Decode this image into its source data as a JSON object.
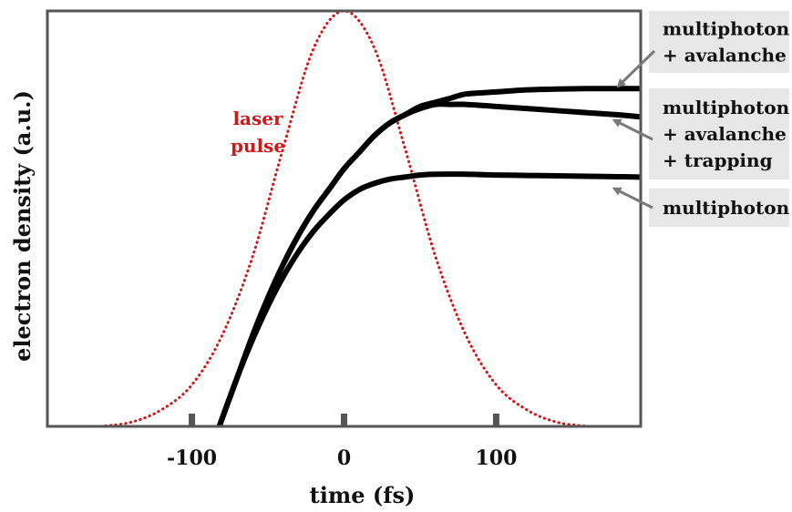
{
  "colors": {
    "curve": "#000000",
    "laser_pulse": "#d01818",
    "frame": "#555555",
    "legend_background": "#e7e7e7",
    "arrow": "#7a7a7a"
  },
  "chart_data": {
    "type": "line",
    "title": "",
    "xlabel": "time (fs)",
    "ylabel": "electron density (a.u.)",
    "xlim": [
      -195,
      195
    ],
    "ylim": [
      0,
      1
    ],
    "x_ticks": [
      -100,
      0,
      100
    ],
    "x_tick_labels": [
      "-100",
      "0",
      "100"
    ],
    "grid": false,
    "y_tick_labels": false,
    "series": [
      {
        "key": "laser",
        "label_lines": [
          "laser",
          "pulse"
        ],
        "color": "#d01818",
        "style": "dotted",
        "x": [
          -160,
          -140,
          -120,
          -100,
          -80,
          -60,
          -40,
          -20,
          0,
          20,
          40,
          60,
          80,
          100,
          120,
          140,
          160
        ],
        "y": [
          0.0,
          0.01,
          0.04,
          0.1,
          0.22,
          0.41,
          0.67,
          0.91,
          1.0,
          0.91,
          0.67,
          0.41,
          0.22,
          0.1,
          0.04,
          0.01,
          0.0
        ]
      },
      {
        "key": "multiphoton_avalanche",
        "label_lines": [
          "multiphoton",
          "+ avalanche"
        ],
        "color": "#000000",
        "style": "solid",
        "x": [
          -82,
          -70,
          -60,
          -50,
          -40,
          -30,
          -20,
          -10,
          0,
          10,
          20,
          30,
          40,
          50,
          60,
          70,
          80,
          100,
          120,
          140,
          160,
          180,
          195
        ],
        "y": [
          0.0,
          0.12,
          0.22,
          0.31,
          0.39,
          0.46,
          0.52,
          0.57,
          0.62,
          0.66,
          0.7,
          0.73,
          0.75,
          0.77,
          0.78,
          0.79,
          0.8,
          0.805,
          0.81,
          0.812,
          0.813,
          0.813,
          0.813
        ]
      },
      {
        "key": "multiphoton_avalanche_trapping",
        "label_lines": [
          "multiphoton",
          "+ avalanche",
          "+ trapping"
        ],
        "color": "#000000",
        "style": "solid",
        "x": [
          -82,
          -70,
          -60,
          -50,
          -40,
          -30,
          -20,
          -10,
          0,
          10,
          20,
          30,
          40,
          50,
          60,
          70,
          80,
          100,
          120,
          140,
          160,
          180,
          195
        ],
        "y": [
          0.0,
          0.12,
          0.22,
          0.31,
          0.39,
          0.46,
          0.52,
          0.57,
          0.62,
          0.66,
          0.7,
          0.73,
          0.75,
          0.765,
          0.775,
          0.775,
          0.775,
          0.77,
          0.765,
          0.76,
          0.755,
          0.75,
          0.745
        ]
      },
      {
        "key": "multiphoton",
        "label_lines": [
          "multiphoton"
        ],
        "color": "#000000",
        "style": "solid",
        "x": [
          -82,
          -70,
          -60,
          -50,
          -40,
          -30,
          -20,
          -10,
          0,
          10,
          20,
          30,
          40,
          50,
          60,
          80,
          100,
          120,
          140,
          160,
          180,
          195
        ],
        "y": [
          0.0,
          0.12,
          0.21,
          0.29,
          0.36,
          0.42,
          0.47,
          0.51,
          0.545,
          0.57,
          0.585,
          0.595,
          0.6,
          0.605,
          0.607,
          0.607,
          0.605,
          0.604,
          0.603,
          0.602,
          0.601,
          0.6
        ]
      }
    ],
    "legend_placement": "right"
  }
}
